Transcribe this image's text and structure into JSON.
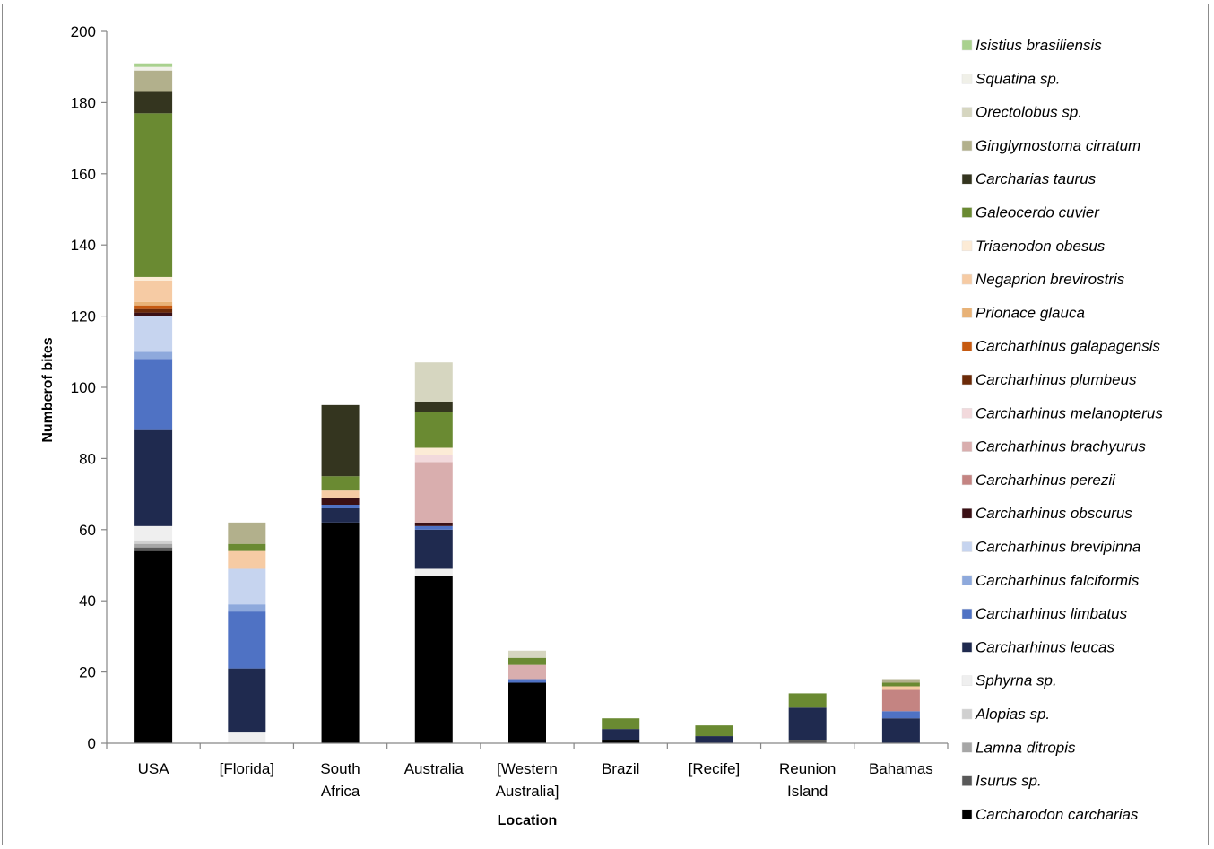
{
  "chart_data": {
    "type": "bar",
    "stacked": true,
    "title": "",
    "xlabel": "Location",
    "ylabel": "Numberof bites",
    "ylim": [
      0,
      200
    ],
    "yticks": [
      0,
      20,
      40,
      60,
      80,
      100,
      120,
      140,
      160,
      180,
      200
    ],
    "grid": false,
    "legend_position": "right",
    "categories": [
      [
        "USA"
      ],
      [
        "[Florida]"
      ],
      [
        "South",
        "Africa"
      ],
      [
        "Australia"
      ],
      [
        "[Western",
        "Australia]"
      ],
      [
        "Brazil"
      ],
      [
        "[Recife]"
      ],
      [
        "Reunion",
        "Island"
      ],
      [
        "Bahamas"
      ]
    ],
    "series": [
      {
        "name": "Carcharodon carcharias",
        "color": "#000000",
        "values": [
          54,
          0,
          62,
          47,
          17,
          1,
          0,
          0,
          0
        ]
      },
      {
        "name": "Isurus sp.",
        "color": "#595959",
        "values": [
          1,
          0,
          0,
          0,
          0,
          0,
          0,
          1,
          0
        ]
      },
      {
        "name": "Lamna ditropis",
        "color": "#a6a6a6",
        "values": [
          1,
          0,
          0,
          0,
          0,
          0,
          0,
          0,
          0
        ]
      },
      {
        "name": "Alopias sp.",
        "color": "#d0d0d0",
        "values": [
          1,
          0,
          0,
          0,
          0,
          0,
          0,
          0,
          0
        ]
      },
      {
        "name": "Sphyrna sp.",
        "color": "#efefef",
        "values": [
          4,
          3,
          0,
          2,
          0,
          0,
          0,
          0,
          0
        ]
      },
      {
        "name": "Carcharhinus leucas",
        "color": "#1f2a4f",
        "values": [
          27,
          18,
          4,
          11,
          0,
          3,
          2,
          9,
          7
        ]
      },
      {
        "name": "Carcharhinus limbatus",
        "color": "#4f72c4",
        "values": [
          20,
          16,
          1,
          1,
          1,
          0,
          0,
          0,
          2
        ]
      },
      {
        "name": "Carcharhinus falciformis",
        "color": "#8ea9dc",
        "values": [
          2,
          2,
          0,
          0,
          0,
          0,
          0,
          0,
          0
        ]
      },
      {
        "name": "Carcharhinus brevipinna",
        "color": "#c6d4ef",
        "values": [
          10,
          10,
          0,
          0,
          0,
          0,
          0,
          0,
          0
        ]
      },
      {
        "name": "Carcharhinus obscurus",
        "color": "#3b1015",
        "values": [
          1,
          0,
          2,
          1,
          0,
          0,
          0,
          0,
          0
        ]
      },
      {
        "name": "Carcharhinus perezii",
        "color": "#c48482",
        "values": [
          0,
          0,
          0,
          0,
          0,
          0,
          0,
          0,
          6
        ]
      },
      {
        "name": "Carcharhinus brachyurus",
        "color": "#d9aeae",
        "values": [
          0,
          0,
          0,
          17,
          4,
          0,
          0,
          0,
          0
        ]
      },
      {
        "name": "Carcharhinus melanopterus",
        "color": "#f2d9dc",
        "values": [
          0,
          0,
          0,
          2,
          0,
          0,
          0,
          0,
          0
        ]
      },
      {
        "name": "Carcharhinus plumbeus",
        "color": "#6b2a08",
        "values": [
          1,
          0,
          0,
          0,
          0,
          0,
          0,
          0,
          0
        ]
      },
      {
        "name": "Carcharhinus galapagensis",
        "color": "#c65a11",
        "values": [
          1,
          0,
          0,
          0,
          0,
          0,
          0,
          0,
          0
        ]
      },
      {
        "name": "Prionace glauca",
        "color": "#e8b277",
        "values": [
          1,
          0,
          0,
          0,
          0,
          0,
          0,
          0,
          0
        ]
      },
      {
        "name": "Negaprion brevirostris",
        "color": "#f6cba4",
        "values": [
          6,
          5,
          2,
          0,
          0,
          0,
          0,
          0,
          1
        ]
      },
      {
        "name": "Triaenodon obesus",
        "color": "#fcebd6",
        "values": [
          1,
          0,
          0,
          2,
          0,
          0,
          0,
          0,
          0
        ]
      },
      {
        "name": "Galeocerdo cuvier",
        "color": "#6a8a32",
        "values": [
          46,
          2,
          4,
          10,
          2,
          3,
          3,
          4,
          1
        ]
      },
      {
        "name": "Carcharias taurus",
        "color": "#34351f",
        "values": [
          6,
          0,
          20,
          3,
          0,
          0,
          0,
          0,
          0
        ]
      },
      {
        "name": "Ginglymostoma cirratum",
        "color": "#b2b08c",
        "values": [
          6,
          6,
          0,
          0,
          0,
          0,
          0,
          0,
          1
        ]
      },
      {
        "name": "Orectolobus sp.",
        "color": "#d6d6c0",
        "values": [
          0,
          0,
          0,
          11,
          2,
          0,
          0,
          0,
          0
        ]
      },
      {
        "name": "Squatina sp.",
        "color": "#f0f0e8",
        "values": [
          1,
          0,
          0,
          0,
          0,
          0,
          0,
          0,
          0
        ]
      },
      {
        "name": "Isistius brasiliensis",
        "color": "#a9d18e",
        "values": [
          1,
          0,
          0,
          0,
          0,
          0,
          0,
          0,
          0
        ]
      }
    ]
  }
}
